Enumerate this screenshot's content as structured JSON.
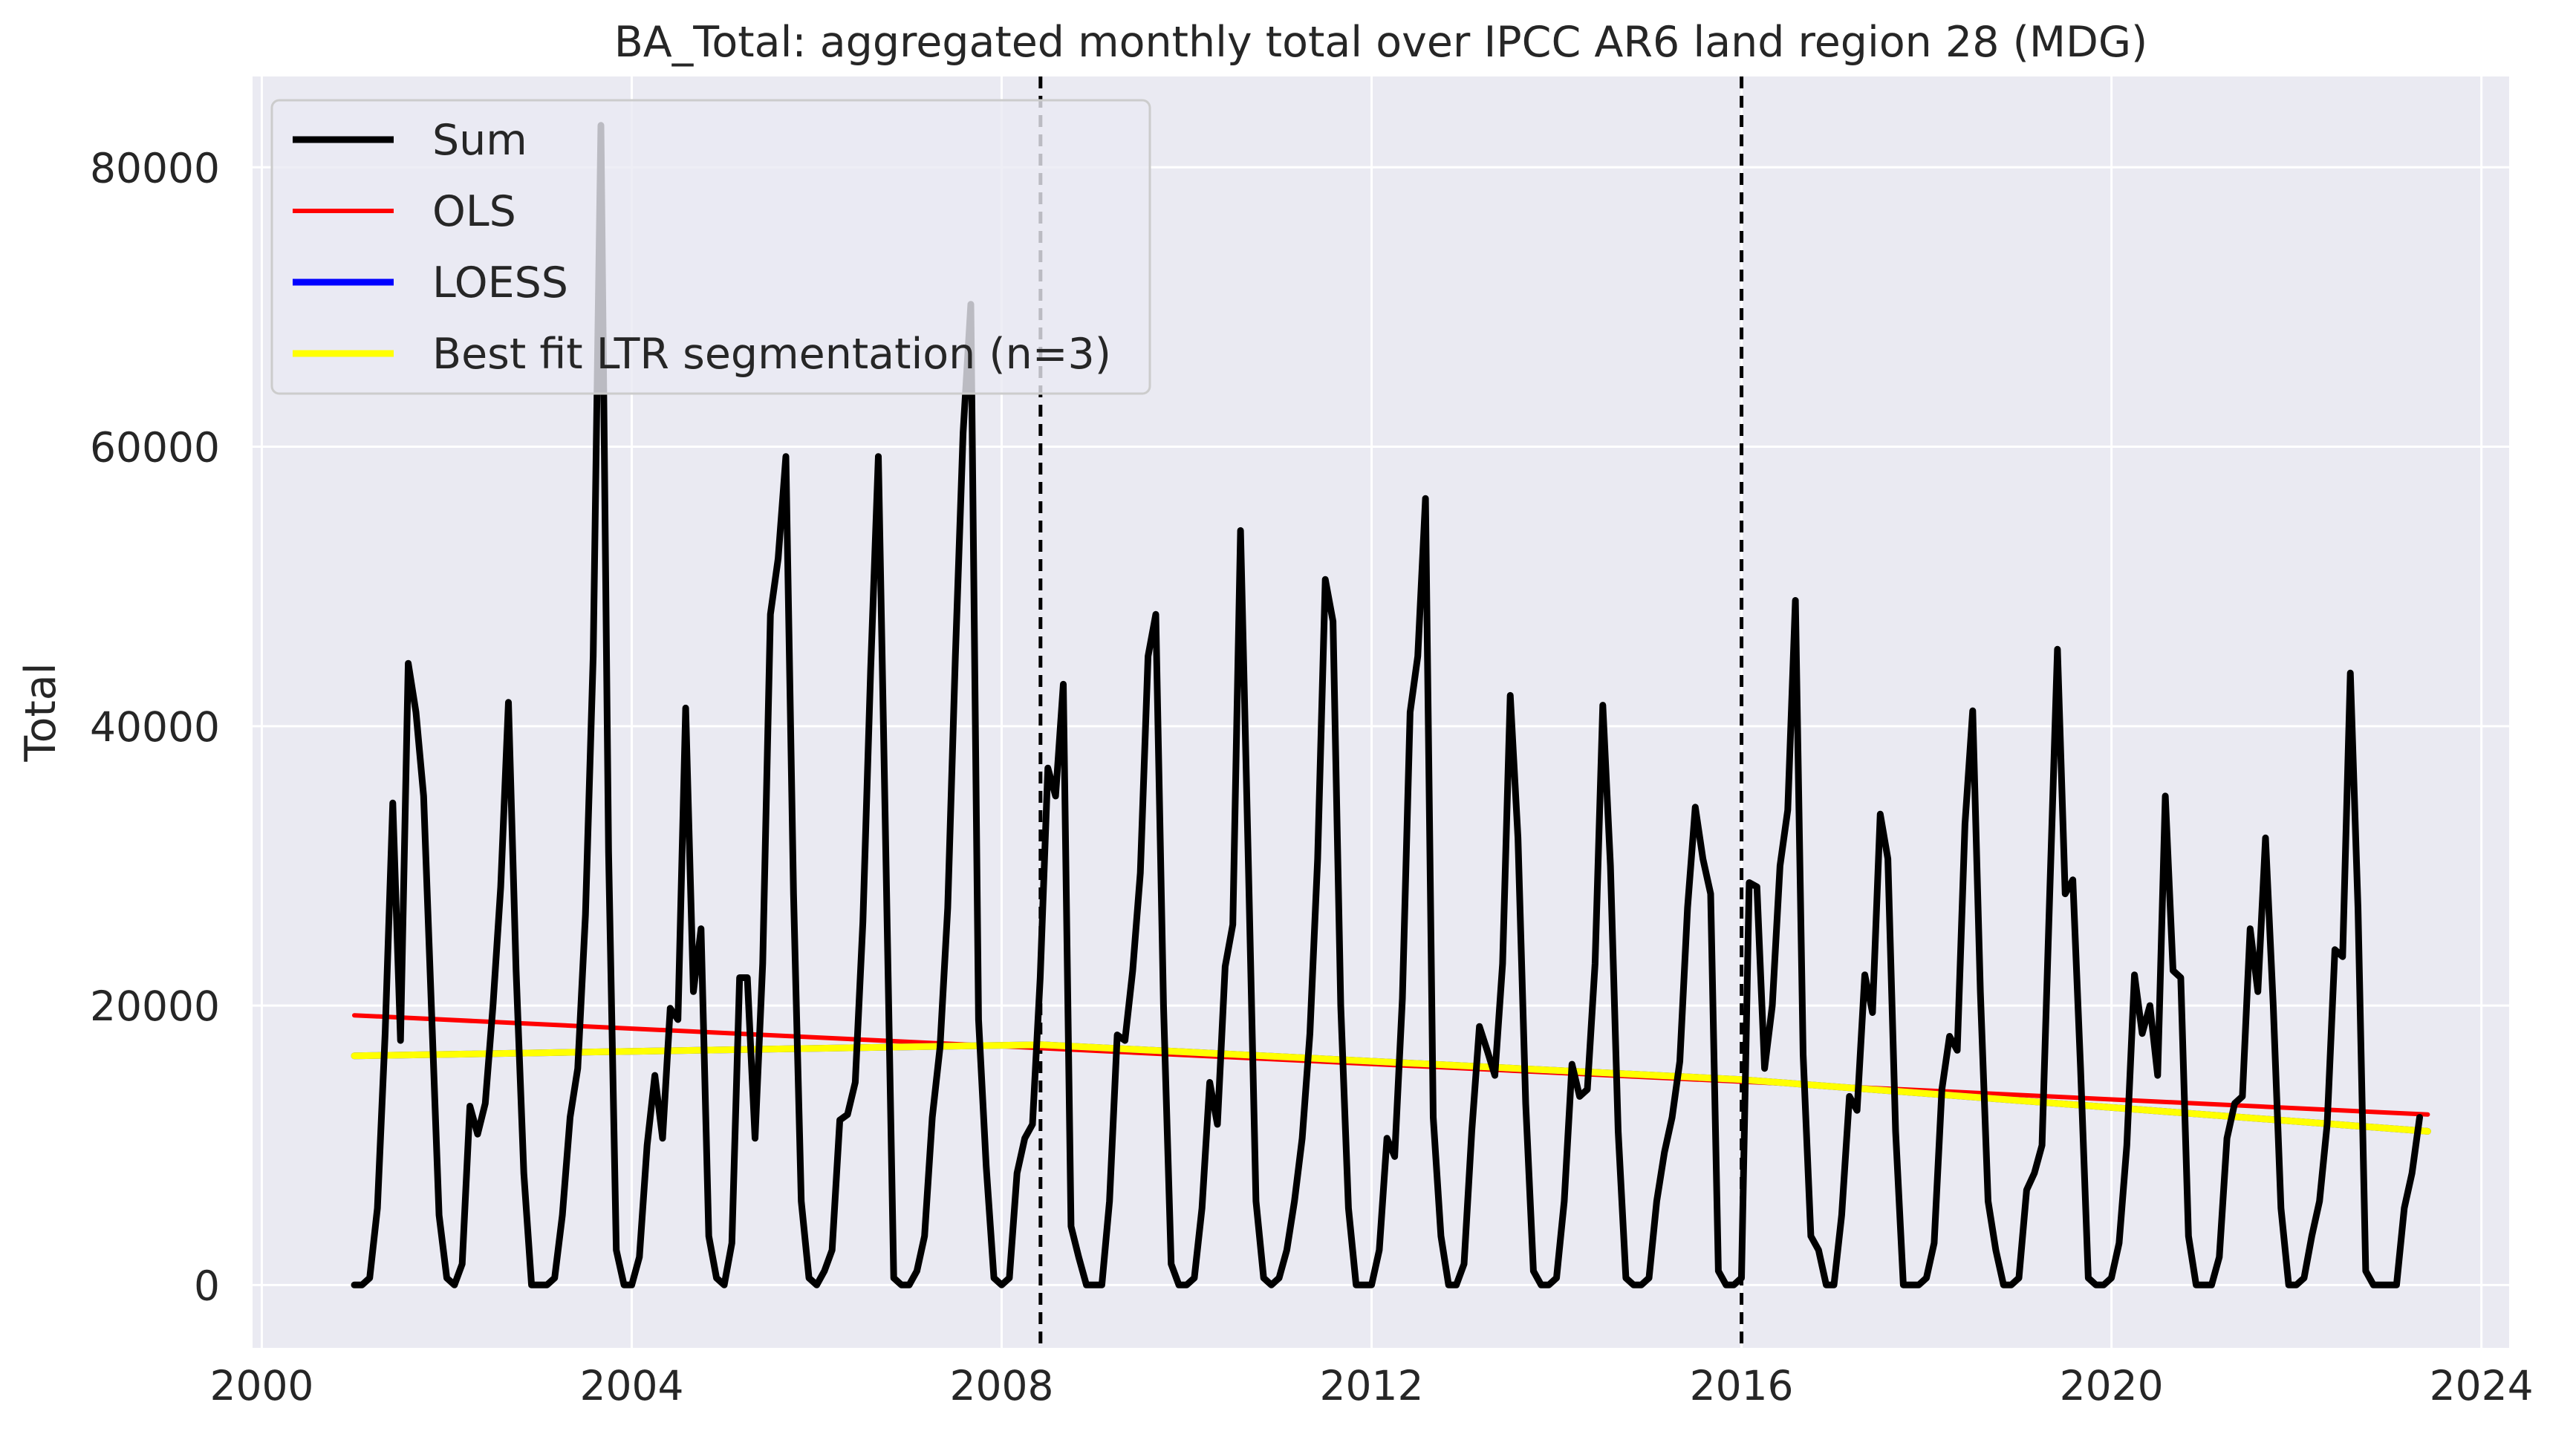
{
  "chart_data": {
    "type": "line",
    "title": "BA_Total: aggregated monthly total over IPCC AR6 land region 28 (MDG)",
    "xlabel": "",
    "ylabel": "Total",
    "xlim": [
      1999.9,
      2024.3
    ],
    "ylim": [
      -4500,
      86500
    ],
    "x_ticks": [
      2000,
      2004,
      2008,
      2012,
      2016,
      2020,
      2024
    ],
    "x_tick_labels": [
      "2000",
      "2004",
      "2008",
      "2012",
      "2016",
      "2020",
      "2024"
    ],
    "y_ticks": [
      0,
      20000,
      40000,
      60000,
      80000
    ],
    "y_tick_labels": [
      "0",
      "20000",
      "40000",
      "60000",
      "80000"
    ],
    "grid": true,
    "background": "#eaeaf2",
    "legend_position": "top-left",
    "vertical_markers": [
      2008.42,
      2016.0
    ],
    "series": [
      {
        "name": "Sum",
        "color": "#000000",
        "x_start": 2001.0,
        "x_step": 0.08333,
        "values": [
          0,
          0,
          500,
          5500,
          18000,
          34500,
          17500,
          44500,
          41000,
          35000,
          20000,
          5000,
          500,
          0,
          1500,
          12800,
          10800,
          13000,
          20000,
          28500,
          41700,
          22500,
          8000,
          0,
          0,
          0,
          500,
          5000,
          12000,
          15500,
          26500,
          45000,
          83000,
          31000,
          2500,
          0,
          0,
          2000,
          10000,
          15000,
          10500,
          19800,
          19000,
          41300,
          21000,
          25500,
          3500,
          500,
          0,
          3000,
          22000,
          22000,
          10500,
          23000,
          48000,
          52000,
          59300,
          28000,
          6000,
          500,
          0,
          1000,
          2500,
          11800,
          12200,
          14500,
          26000,
          44000,
          59300,
          30000,
          500,
          0,
          0,
          1000,
          3500,
          12000,
          17000,
          27000,
          45000,
          61000,
          70200,
          19000,
          8500,
          500,
          0,
          500,
          8000,
          10500,
          11500,
          22000,
          37000,
          35000,
          43000,
          4200,
          2000,
          0,
          0,
          0,
          6000,
          17900,
          17500,
          22500,
          29500,
          45000,
          48000,
          20000,
          1500,
          0,
          0,
          500,
          5500,
          14500,
          11500,
          22800,
          25800,
          54000,
          30500,
          6000,
          500,
          0,
          500,
          2500,
          6000,
          10500,
          18000,
          30500,
          50500,
          47500,
          20000,
          5500,
          0,
          0,
          0,
          2500,
          10500,
          9200,
          20500,
          41000,
          45000,
          56300,
          12000,
          3500,
          0,
          0,
          1500,
          11000,
          18500,
          16800,
          15000,
          23000,
          42200,
          32000,
          13000,
          1000,
          0,
          0,
          500,
          6000,
          15800,
          13500,
          14000,
          23000,
          41500,
          30000,
          11000,
          500,
          0,
          0,
          500,
          6000,
          9500,
          12000,
          16000,
          27000,
          34200,
          30500,
          28000,
          1000,
          0,
          0,
          500,
          28800,
          28500,
          15500,
          20000,
          30000,
          34000,
          49000,
          16500,
          3500,
          2500,
          0,
          0,
          5000,
          13500,
          12500,
          22200,
          19500,
          33700,
          30500,
          11000,
          0,
          0,
          0,
          500,
          3000,
          14000,
          17800,
          16800,
          33000,
          41100,
          21000,
          6000,
          2500,
          0,
          0,
          500,
          6800,
          8000,
          10000,
          28000,
          45500,
          28000,
          29000,
          15500,
          500,
          0,
          0,
          500,
          3000,
          10000,
          22200,
          18000,
          20000,
          15000,
          35000,
          22500,
          22000,
          3500,
          0,
          0,
          0,
          2000,
          10500,
          13000,
          13500,
          25500,
          21000,
          32000,
          20000,
          5500,
          0,
          0,
          500,
          3500,
          6000,
          11500,
          24000,
          23500,
          43800,
          27000,
          1000,
          0,
          0,
          0,
          0,
          5500,
          8000,
          12000
        ]
      },
      {
        "name": "OLS",
        "color": "#ff0000",
        "x": [
          2001.0,
          2023.42
        ],
        "values": [
          19300,
          12200
        ]
      },
      {
        "name": "LOESS",
        "color": "#0000ff",
        "x": [
          2001.0,
          2008.42,
          2016.0,
          2023.42
        ],
        "values": [
          16400,
          17200,
          14700,
          11000
        ]
      },
      {
        "name": "Best fit LTR segmentation (n=3)",
        "color": "#ffff00",
        "x": [
          2001.0,
          2008.42,
          2016.0,
          2023.42
        ],
        "values": [
          16400,
          17200,
          14700,
          11000
        ]
      }
    ]
  }
}
